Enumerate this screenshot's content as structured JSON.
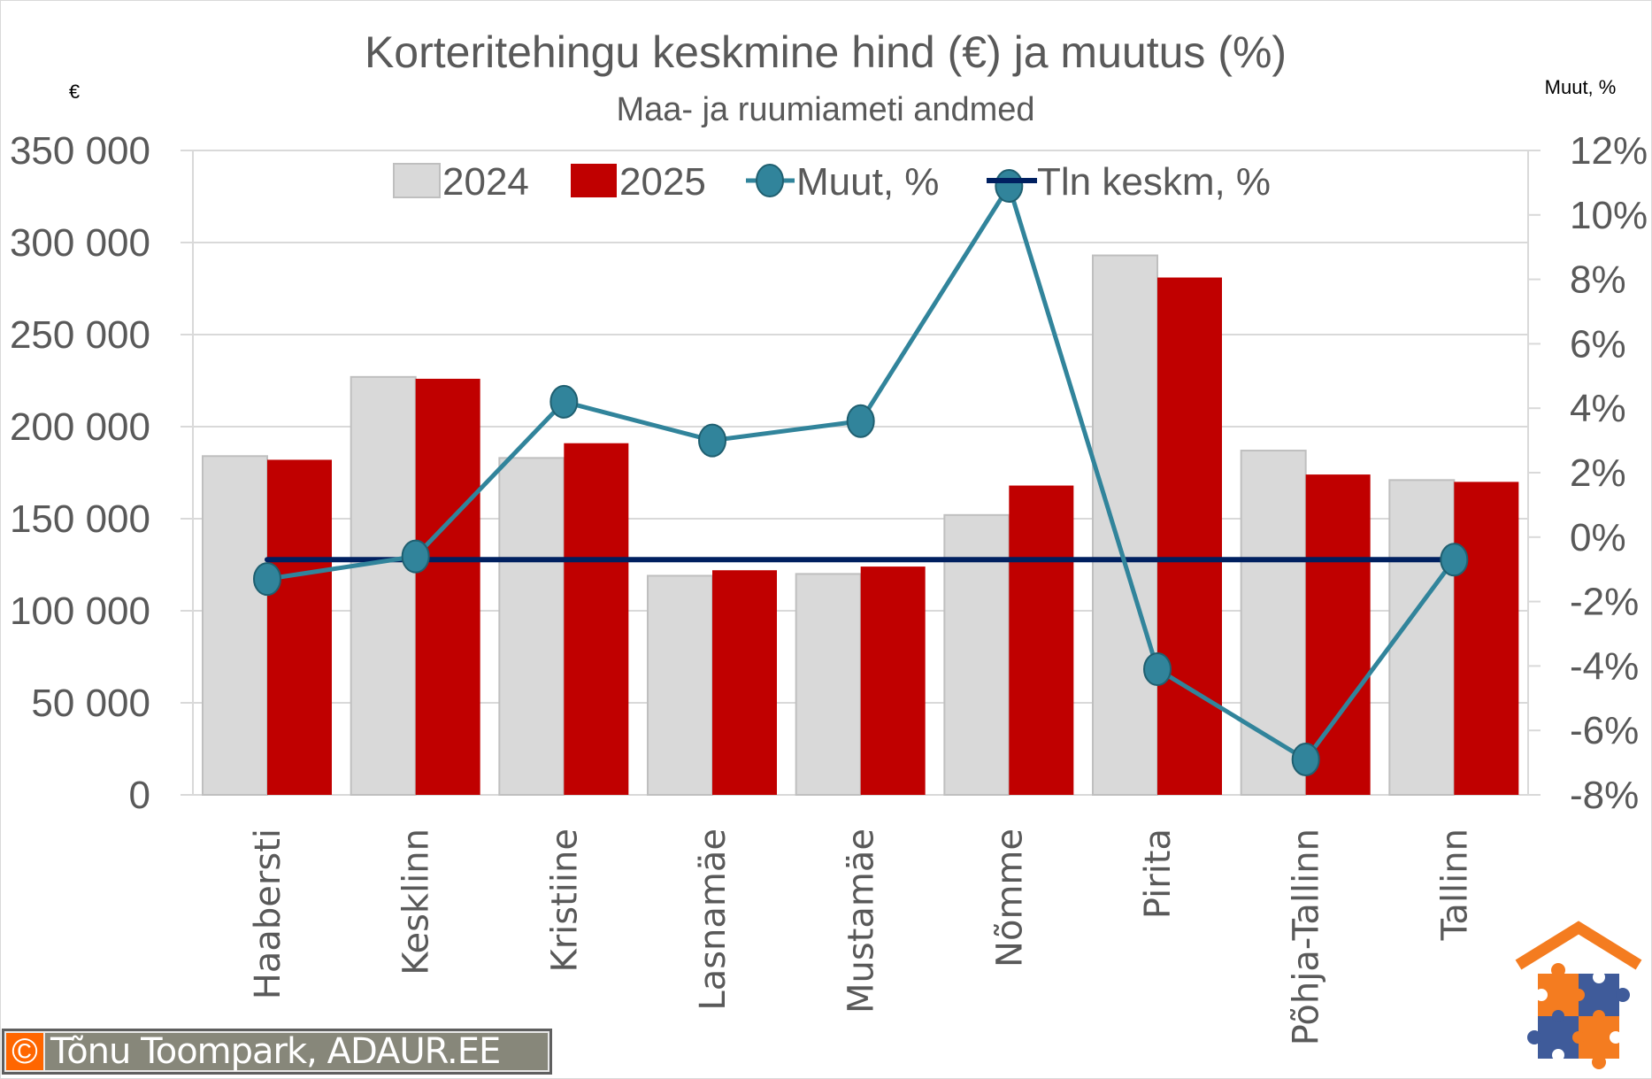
{
  "title": "Korteritehingu keskmine hind (€) ja muutus (%)",
  "subtitle": "Maa- ja ruumiameti andmed",
  "left_axis_unit": "€",
  "right_axis_unit": "Muut, %",
  "copyright": {
    "symbol": "©",
    "text": "Tõnu Toompark, ADAUR.EE"
  },
  "logo": {
    "name": "ADAUR house puzzle logo",
    "colors": [
      "#f47c20",
      "#3f5b9a"
    ]
  },
  "chart_data": {
    "type": "bar",
    "title": "Korteritehingu keskmine hind (€) ja muutus (%)",
    "subtitle": "Maa- ja ruumiameti andmed",
    "xlabel": "",
    "ylabel": "€",
    "y2label": "Muut, %",
    "ylim": [
      0,
      350000
    ],
    "y2lim": [
      -0.08,
      0.12
    ],
    "yticks": [
      "0",
      "50 000",
      "100 000",
      "150 000",
      "200 000",
      "250 000",
      "300 000",
      "350 000"
    ],
    "y2ticks": [
      "-8%",
      "-6%",
      "-4%",
      "-2%",
      "0%",
      "2%",
      "4%",
      "6%",
      "8%",
      "10%",
      "12%"
    ],
    "grid": true,
    "legend_position": "top-inside",
    "categories": [
      "Haabersti",
      "Kesklinn",
      "Kristiine",
      "Lasnamäe",
      "Mustamäe",
      "Nõmme",
      "Pirita",
      "Põhja-Tallinn",
      "Tallinn"
    ],
    "series": [
      {
        "name": "2024",
        "type": "bar",
        "axis": "left",
        "color": "#d9d9d9",
        "values": [
          184000,
          227000,
          183000,
          119000,
          120000,
          152000,
          293000,
          187000,
          171000
        ]
      },
      {
        "name": "2025",
        "type": "bar",
        "axis": "left",
        "color": "#c00000",
        "values": [
          182000,
          226000,
          191000,
          122000,
          124000,
          168000,
          281000,
          174000,
          170000
        ]
      },
      {
        "name": "Muut, %",
        "type": "line",
        "axis": "right",
        "color": "#31849b",
        "marker": "circle",
        "values": [
          -1.3,
          -0.6,
          4.2,
          3.0,
          3.6,
          10.9,
          -4.1,
          -6.9,
          -0.7
        ]
      },
      {
        "name": "Tln keskm, %",
        "type": "line",
        "axis": "right",
        "color": "#002060",
        "marker": "none",
        "values": [
          -0.7,
          -0.7,
          -0.7,
          -0.7,
          -0.7,
          -0.7,
          -0.7,
          -0.7,
          -0.7
        ]
      }
    ]
  }
}
